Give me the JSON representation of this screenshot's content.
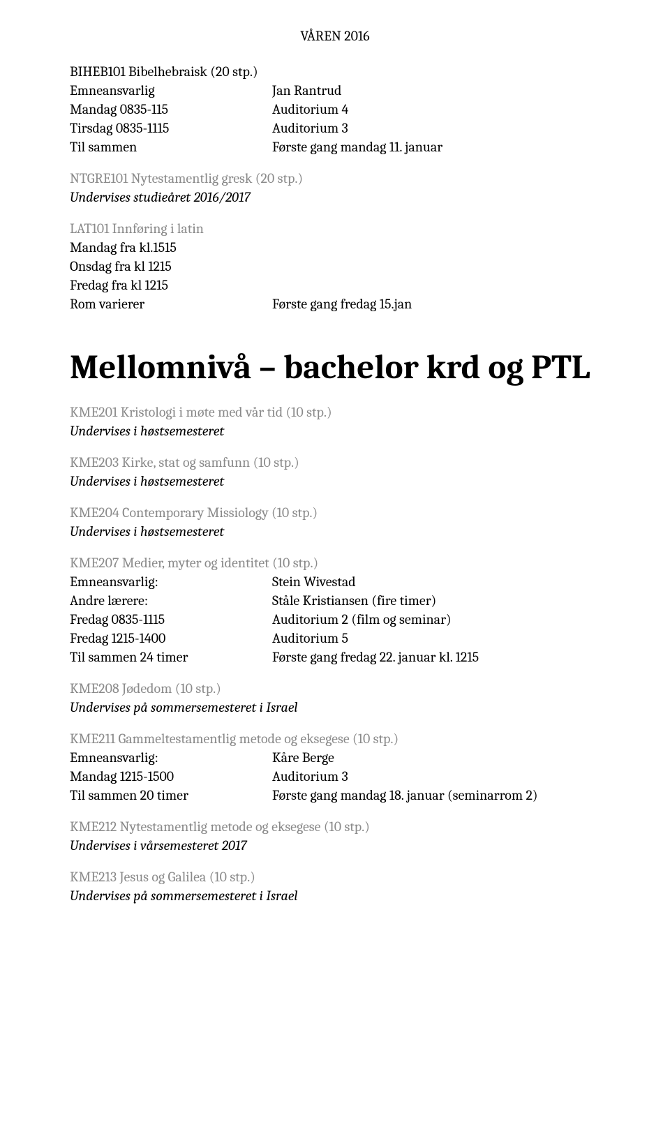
{
  "header": {
    "title": "VÅREN 2016"
  },
  "courses": {
    "biheb101": {
      "title": "BIHEB101 Bibelhebraisk (20 stp.)",
      "rows": [
        {
          "left": "Emneansvarlig",
          "right": "Jan Rantrud"
        },
        {
          "left": "Mandag 0835-115",
          "right": "Auditorium 4"
        },
        {
          "left": "Tirsdag 0835-1115",
          "right": "Auditorium 3"
        },
        {
          "left": "Til sammen",
          "right": "Første gang mandag 11. januar"
        }
      ]
    },
    "ntgre101": {
      "title": "NTGRE101 Nytestamentlig gresk (20 stp.)",
      "note": "Undervises studieåret 2016/2017"
    },
    "lat101": {
      "title": "LAT101 Innføring i latin",
      "lines": [
        "Mandag fra kl.1515",
        "Onsdag fra kl 1215",
        "Fredag fra kl 1215"
      ],
      "row": {
        "left": "Rom varierer",
        "right": "Første gang fredag 15.jan"
      }
    }
  },
  "section_title": "Mellomnivå – bachelor krd og PTL",
  "mellom": {
    "kme201": {
      "title": "KME201 Kristologi i møte med vår tid (10 stp.)",
      "note": "Undervises i høstsemesteret"
    },
    "kme203": {
      "title": "KME203 Kirke, stat og samfunn (10 stp.)",
      "note": "Undervises i høstsemesteret"
    },
    "kme204": {
      "title": "KME204 Contemporary Missiology (10 stp.)",
      "note": "Undervises i høstsemesteret"
    },
    "kme207": {
      "title": "KME207 Medier, myter og identitet (10 stp.)",
      "rows": [
        {
          "left": "Emneansvarlig:",
          "right": "Stein Wivestad"
        },
        {
          "left": "Andre lærere:",
          "right": "Ståle Kristiansen (fire timer)"
        },
        {
          "left": "Fredag 0835-1115",
          "right": "Auditorium 2 (film og seminar)"
        },
        {
          "left": "Fredag 1215-1400",
          "right": "Auditorium 5"
        },
        {
          "left": "Til sammen 24 timer",
          "right": "Første gang fredag 22. januar kl. 1215"
        }
      ]
    },
    "kme208": {
      "title": "KME208 Jødedom (10 stp.)",
      "note": "Undervises på sommersemesteret i Israel"
    },
    "kme211": {
      "title": "KME211 Gammeltestamentlig metode og eksegese (10 stp.)",
      "rows": [
        {
          "left": "Emneansvarlig:",
          "right": "Kåre Berge"
        },
        {
          "left": "Mandag 1215-1500",
          "right": "Auditorium 3"
        },
        {
          "left": "Til sammen 20 timer",
          "right": "Første gang mandag 18. januar (seminarrom 2)"
        }
      ]
    },
    "kme212": {
      "title": "KME212 Nytestamentlig metode og eksegese (10 stp.)",
      "note": "Undervises i vårsemesteret 2017"
    },
    "kme213": {
      "title": "KME213 Jesus og Galilea (10 stp.)",
      "note": "Undervises på sommersemesteret i Israel"
    }
  }
}
